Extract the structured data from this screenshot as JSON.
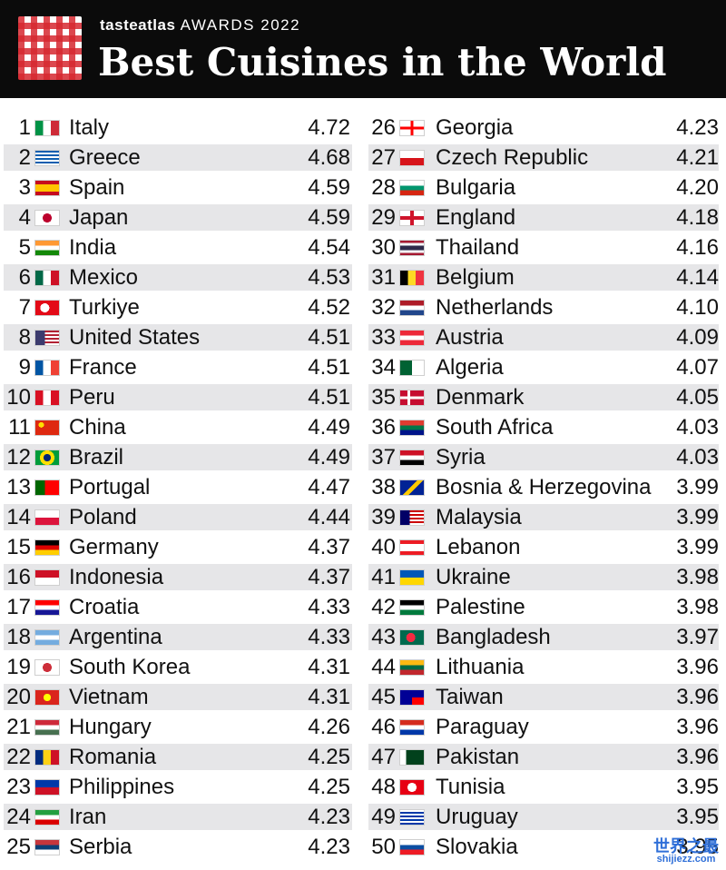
{
  "header": {
    "brand_name": "tasteatlas",
    "brand_suffix": "AWARDS 2022",
    "title": "Best Cuisines in the World"
  },
  "left": [
    {
      "rank": "1",
      "country": "Italy",
      "score": "4.72",
      "flag": "linear-gradient(90deg,#009246 0 33%,#ffffff 33% 66%,#ce2b37 66%)"
    },
    {
      "rank": "2",
      "country": "Greece",
      "score": "4.68",
      "flag": "repeating-linear-gradient(180deg,#0d5eaf 0 2px,#ffffff 2px 4px)"
    },
    {
      "rank": "3",
      "country": "Spain",
      "score": "4.59",
      "flag": "linear-gradient(180deg,#c60b1e 0 25%,#ffc400 25% 75%,#c60b1e 75%)"
    },
    {
      "rank": "4",
      "country": "Japan",
      "score": "4.59",
      "flag": "radial-gradient(circle at 50% 50%,#bc002d 0 5px,#ffffff 5px)"
    },
    {
      "rank": "5",
      "country": "India",
      "score": "4.54",
      "flag": "linear-gradient(180deg,#ff9933 0 33%,#ffffff 33% 66%,#138808 66%)"
    },
    {
      "rank": "6",
      "country": "Mexico",
      "score": "4.53",
      "flag": "linear-gradient(90deg,#006847 0 33%,#ffffff 33% 66%,#ce1126 66%)"
    },
    {
      "rank": "7",
      "country": "Turkiye",
      "score": "4.52",
      "flag": "radial-gradient(circle at 40% 50%,#ffffff 0 5px,#e30a17 5px)"
    },
    {
      "rank": "8",
      "country": "United States",
      "score": "4.51",
      "flag": "linear-gradient(90deg,#3c3b6e 0 40%,transparent 40%),repeating-linear-gradient(180deg,#b22234 0 2px,#ffffff 2px 4px)"
    },
    {
      "rank": "9",
      "country": "France",
      "score": "4.51",
      "flag": "linear-gradient(90deg,#0055a4 0 33%,#ffffff 33% 66%,#ef4135 66%)"
    },
    {
      "rank": "10",
      "country": "Peru",
      "score": "4.51",
      "flag": "linear-gradient(90deg,#d91023 0 33%,#ffffff 33% 66%,#d91023 66%)"
    },
    {
      "rank": "11",
      "country": "China",
      "score": "4.49",
      "flag": "radial-gradient(circle at 25% 30%,#ffde00 0 3px,#de2910 3px)"
    },
    {
      "rank": "12",
      "country": "Brazil",
      "score": "4.49",
      "flag": "radial-gradient(circle at 50% 50%,#002776 0 4px,#ffdf00 4px 8px,#009c3b 8px)"
    },
    {
      "rank": "13",
      "country": "Portugal",
      "score": "4.47",
      "flag": "linear-gradient(90deg,#006600 0 40%,#ff0000 40%)"
    },
    {
      "rank": "14",
      "country": "Poland",
      "score": "4.44",
      "flag": "linear-gradient(180deg,#ffffff 0 50%,#dc143c 50%)"
    },
    {
      "rank": "15",
      "country": "Germany",
      "score": "4.37",
      "flag": "linear-gradient(180deg,#000000 0 33%,#dd0000 33% 66%,#ffce00 66%)"
    },
    {
      "rank": "16",
      "country": "Indonesia",
      "score": "4.37",
      "flag": "linear-gradient(180deg,#ce1126 0 50%,#ffffff 50%)"
    },
    {
      "rank": "17",
      "country": "Croatia",
      "score": "4.33",
      "flag": "linear-gradient(180deg,#ff0000 0 33%,#ffffff 33% 66%,#171796 66%)"
    },
    {
      "rank": "18",
      "country": "Argentina",
      "score": "4.33",
      "flag": "linear-gradient(180deg,#74acdf 0 33%,#ffffff 33% 66%,#74acdf 66%)"
    },
    {
      "rank": "19",
      "country": "South Korea",
      "score": "4.31",
      "flag": "radial-gradient(circle at 50% 50%,#cd2e3a 0 5px,#ffffff 5px)"
    },
    {
      "rank": "20",
      "country": "Vietnam",
      "score": "4.31",
      "flag": "radial-gradient(circle at 50% 50%,#ffff00 0 4px,#da251d 4px)"
    },
    {
      "rank": "21",
      "country": "Hungary",
      "score": "4.26",
      "flag": "linear-gradient(180deg,#ce2939 0 33%,#ffffff 33% 66%,#477050 66%)"
    },
    {
      "rank": "22",
      "country": "Romania",
      "score": "4.25",
      "flag": "linear-gradient(90deg,#002b7f 0 33%,#fcd116 33% 66%,#ce1126 66%)"
    },
    {
      "rank": "23",
      "country": "Philippines",
      "score": "4.25",
      "flag": "linear-gradient(180deg,#0038a8 0 50%,#ce1126 50%)"
    },
    {
      "rank": "24",
      "country": "Iran",
      "score": "4.23",
      "flag": "linear-gradient(180deg,#239f40 0 33%,#ffffff 33% 66%,#da0000 66%)"
    },
    {
      "rank": "25",
      "country": "Serbia",
      "score": "4.23",
      "flag": "linear-gradient(180deg,#c6363c 0 33%,#0c4076 33% 66%,#ffffff 66%)"
    }
  ],
  "right": [
    {
      "rank": "26",
      "country": "Georgia",
      "score": "4.23",
      "flag": "linear-gradient(90deg,transparent 0 44%,#ff0000 44% 56%,transparent 56%),linear-gradient(180deg,#ffffff 0 40%,#ff0000 40% 60%,#ffffff 60%)"
    },
    {
      "rank": "27",
      "country": "Czech Republic",
      "score": "4.21",
      "flag": "linear-gradient(180deg,#ffffff 0 50%,#d7141a 50%)"
    },
    {
      "rank": "28",
      "country": "Bulgaria",
      "score": "4.20",
      "flag": "linear-gradient(180deg,#ffffff 0 33%,#00966e 33% 66%,#d62612 66%)"
    },
    {
      "rank": "29",
      "country": "England",
      "score": "4.18",
      "flag": "linear-gradient(90deg,transparent 0 43%,#cf142b 43% 57%,transparent 57%),linear-gradient(180deg,#ffffff 0 38%,#cf142b 38% 62%,#ffffff 62%)"
    },
    {
      "rank": "30",
      "country": "Thailand",
      "score": "4.16",
      "flag": "linear-gradient(180deg,#a51931 0 17%,#f4f5f8 17% 33%,#2d2a4a 33% 67%,#f4f5f8 67% 83%,#a51931 83%)"
    },
    {
      "rank": "31",
      "country": "Belgium",
      "score": "4.14",
      "flag": "linear-gradient(90deg,#000000 0 33%,#fdda24 33% 66%,#ef3340 66%)"
    },
    {
      "rank": "32",
      "country": "Netherlands",
      "score": "4.10",
      "flag": "linear-gradient(180deg,#ae1c28 0 33%,#ffffff 33% 66%,#21468b 66%)"
    },
    {
      "rank": "33",
      "country": "Austria",
      "score": "4.09",
      "flag": "linear-gradient(180deg,#ed2939 0 33%,#ffffff 33% 66%,#ed2939 66%)"
    },
    {
      "rank": "34",
      "country": "Algeria",
      "score": "4.07",
      "flag": "linear-gradient(90deg,#006233 0 50%,#ffffff 50%)"
    },
    {
      "rank": "35",
      "country": "Denmark",
      "score": "4.05",
      "flag": "linear-gradient(90deg,transparent 0 30%,#ffffff 30% 42%,transparent 42%),linear-gradient(180deg,#c60c30 0 42%,#ffffff 42% 58%,#c60c30 58%)"
    },
    {
      "rank": "36",
      "country": "South Africa",
      "score": "4.03",
      "flag": "linear-gradient(180deg,#e03c31 0 33%,#007749 33% 66%,#001489 66%)"
    },
    {
      "rank": "37",
      "country": "Syria",
      "score": "4.03",
      "flag": "linear-gradient(180deg,#ce1126 0 33%,#ffffff 33% 66%,#000000 66%)"
    },
    {
      "rank": "38",
      "country": "Bosnia & Herzegovina",
      "score": "3.99",
      "flag": "linear-gradient(135deg,#002395 0 45%,#fecb00 45% 60%,#002395 60%)"
    },
    {
      "rank": "39",
      "country": "Malaysia",
      "score": "3.99",
      "flag": "linear-gradient(90deg,#010066 0 40%,transparent 40%),repeating-linear-gradient(180deg,#cc0001 0 2px,#ffffff 2px 4px)"
    },
    {
      "rank": "40",
      "country": "Lebanon",
      "score": "3.99",
      "flag": "linear-gradient(180deg,#ed1c24 0 25%,#ffffff 25% 75%,#ed1c24 75%)"
    },
    {
      "rank": "41",
      "country": "Ukraine",
      "score": "3.98",
      "flag": "linear-gradient(180deg,#0057b7 0 50%,#ffd700 50%)"
    },
    {
      "rank": "42",
      "country": "Palestine",
      "score": "3.98",
      "flag": "linear-gradient(180deg,#000000 0 33%,#ffffff 33% 66%,#007a3d 66%)"
    },
    {
      "rank": "43",
      "country": "Bangladesh",
      "score": "3.97",
      "flag": "radial-gradient(circle at 45% 50%,#f42a41 0 5px,#006a4e 5px)"
    },
    {
      "rank": "44",
      "country": "Lithuania",
      "score": "3.96",
      "flag": "linear-gradient(180deg,#fdb913 0 33%,#006a44 33% 66%,#c1272d 66%)"
    },
    {
      "rank": "45",
      "country": "Taiwan",
      "score": "3.96",
      "flag": "linear-gradient(90deg,#000095 0 50%,transparent 50%),linear-gradient(180deg,#000095 0 50%,#fe0000 50%)"
    },
    {
      "rank": "46",
      "country": "Paraguay",
      "score": "3.96",
      "flag": "linear-gradient(180deg,#d52b1e 0 33%,#ffffff 33% 66%,#0038a8 66%)"
    },
    {
      "rank": "47",
      "country": "Pakistan",
      "score": "3.96",
      "flag": "linear-gradient(90deg,#ffffff 0 25%,#01411c 25%)"
    },
    {
      "rank": "48",
      "country": "Tunisia",
      "score": "3.95",
      "flag": "radial-gradient(circle at 50% 50%,#ffffff 0 5px,#e70013 5px)"
    },
    {
      "rank": "49",
      "country": "Uruguay",
      "score": "3.95",
      "flag": "repeating-linear-gradient(180deg,#ffffff 0 2px,#0038a8 2px 4px)"
    },
    {
      "rank": "50",
      "country": "Slovakia",
      "score": "3.95",
      "flag": "linear-gradient(180deg,#ffffff 0 33%,#0b4ea2 33% 66%,#ee1c25 66%)"
    }
  ],
  "watermark": {
    "line1": "世界之最",
    "line2": "shijiezz.com"
  }
}
